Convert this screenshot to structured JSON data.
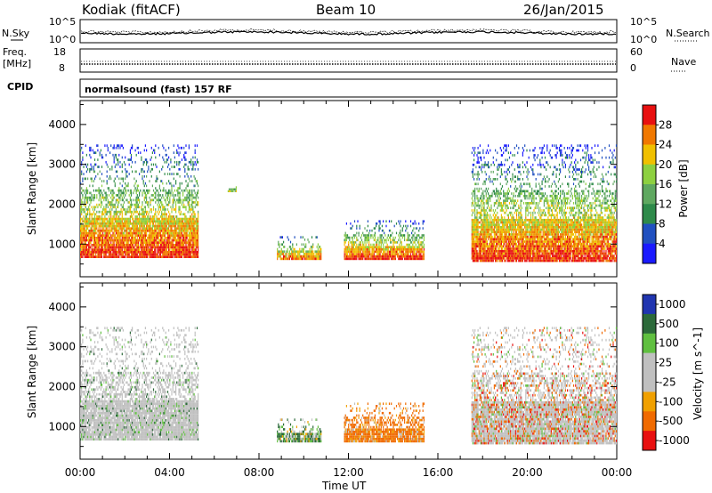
{
  "header": {
    "radar": "Kodiak (fitACF)",
    "beam": "Beam 10",
    "date": "26/Jan/2015"
  },
  "strips": {
    "nsky_label": "N.Sky",
    "nsearch_label": "N.Search",
    "noise_ticks_left": [
      "10^5",
      "10^0"
    ],
    "noise_ticks_right": [
      "10^5",
      "10^0"
    ],
    "freq_label": "Freq.",
    "freq_unit": "[MHz]",
    "freq_ticks": [
      "18",
      "8"
    ],
    "nave_label": "Nave",
    "nave_ticks": [
      "60",
      "0"
    ],
    "cpid_label": "CPID",
    "cpid_value": "normalsound (fast) 157 RF"
  },
  "axes": {
    "ylabel": "Slant Range [km]",
    "xlabel": "Time UT",
    "xticks": [
      "00:00",
      "04:00",
      "08:00",
      "12:00",
      "16:00",
      "20:00",
      "00:00"
    ],
    "yticks": [
      "4000",
      "3000",
      "2000",
      "1000"
    ]
  },
  "chart_data": [
    {
      "type": "heatmap",
      "title": "",
      "xlabel": "Time UT",
      "ylabel": "Slant Range [km]",
      "xlim": [
        0,
        24
      ],
      "ylim": [
        180,
        4600
      ],
      "colorbar": {
        "label": "Power [dB]",
        "ticks": [
          "28",
          "24",
          "20",
          "16",
          "12",
          "8",
          "4"
        ],
        "tick_values": [
          28,
          24,
          20,
          16,
          12,
          8,
          4
        ],
        "range": [
          0,
          32
        ]
      },
      "regions": [
        {
          "t0": 0.0,
          "t1": 5.3,
          "r0": 650,
          "r1": 3500,
          "level": "strong"
        },
        {
          "t0": 6.6,
          "t1": 7.0,
          "r0": 2300,
          "r1": 2500,
          "level": "weak"
        },
        {
          "t0": 8.8,
          "t1": 10.8,
          "r0": 600,
          "r1": 1200,
          "level": "moderate"
        },
        {
          "t0": 11.8,
          "t1": 15.4,
          "r0": 600,
          "r1": 1600,
          "level": "strong"
        },
        {
          "t0": 17.5,
          "t1": 24.0,
          "r0": 550,
          "r1": 3500,
          "level": "strong"
        }
      ]
    },
    {
      "type": "heatmap",
      "title": "",
      "xlabel": "Time UT",
      "ylabel": "Slant Range [km]",
      "xlim": [
        0,
        24
      ],
      "ylim": [
        180,
        4600
      ],
      "colorbar": {
        "label": "Velocity [m s^-1]",
        "ticks": [
          "1000",
          "500",
          "100",
          "25",
          "-25",
          "-100",
          "-500",
          "-1000"
        ],
        "tick_values": [
          1000,
          500,
          100,
          25,
          -25,
          -100,
          -500,
          -1000
        ]
      },
      "regions": [
        {
          "t0": 0.0,
          "t1": 5.3,
          "r0": 650,
          "r1": 3500,
          "velocity": "near zero (ground scatter)"
        },
        {
          "t0": 8.8,
          "t1": 10.8,
          "r0": 600,
          "r1": 1200,
          "velocity": "mixed"
        },
        {
          "t0": 11.8,
          "t1": 15.4,
          "r0": 600,
          "r1": 1600,
          "velocity": "negative (-100 to -500)"
        },
        {
          "t0": 17.5,
          "t1": 24.0,
          "r0": 550,
          "r1": 3500,
          "velocity": "near zero with negative patches"
        }
      ]
    }
  ],
  "colors": {
    "power_scale": [
      "#1a1aff",
      "#2050c0",
      "#2e8a4a",
      "#5fa860",
      "#8dd040",
      "#f0c000",
      "#f07800",
      "#e81010"
    ],
    "velocity_scale": [
      "#2035b0",
      "#2c6a3a",
      "#60c040",
      "#c0c0c0",
      "#c0c0c0",
      "#f0a000",
      "#f06a00",
      "#e81010"
    ]
  }
}
